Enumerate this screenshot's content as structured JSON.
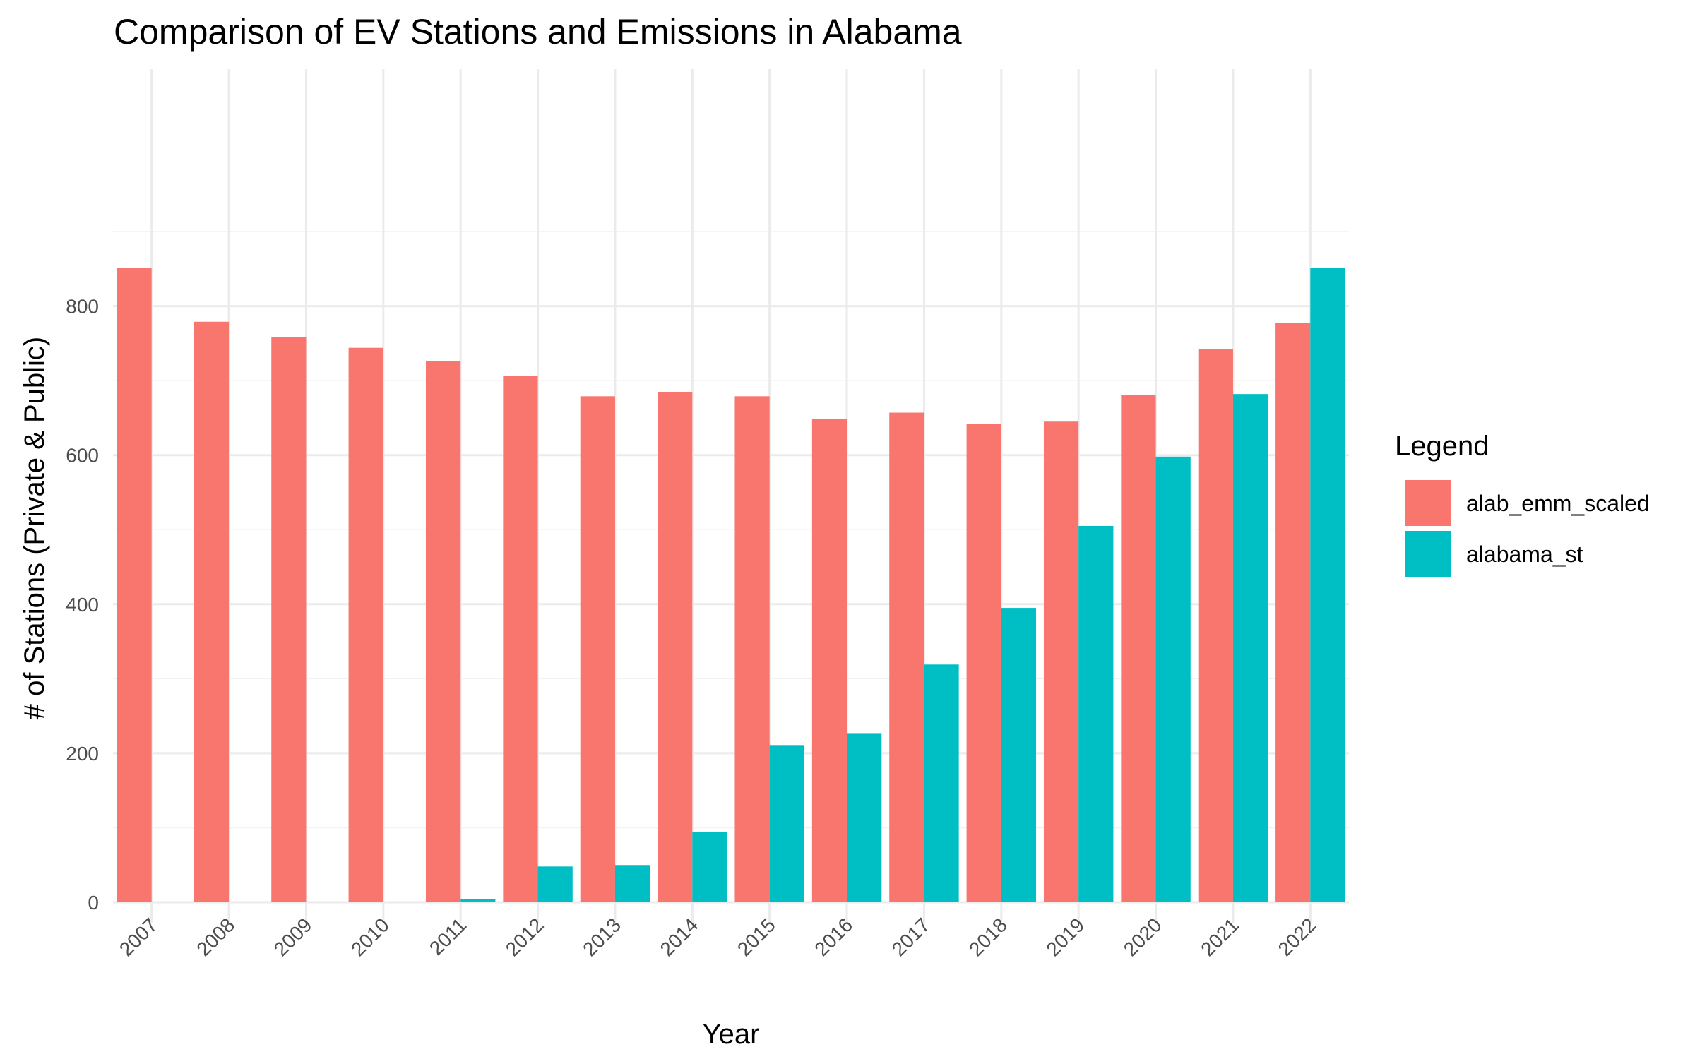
{
  "chart_data": {
    "type": "bar",
    "title": "Comparison of EV Stations and Emissions in Alabama",
    "xlabel": "Year",
    "ylabel": "# of Stations (Private & Public)",
    "categories": [
      "2007",
      "2008",
      "2009",
      "2010",
      "2011",
      "2012",
      "2013",
      "2014",
      "2015",
      "2016",
      "2017",
      "2018",
      "2019",
      "2020",
      "2021",
      "2022"
    ],
    "series": [
      {
        "name": "alab_emm_scaled",
        "color": "#F8766D",
        "values": [
          851,
          779,
          758,
          744,
          726,
          706,
          679,
          685,
          679,
          649,
          657,
          642,
          645,
          681,
          742,
          777
        ]
      },
      {
        "name": "alabama_st",
        "color": "#00BFC4",
        "values": [
          0,
          0,
          0,
          0,
          4,
          48,
          50,
          94,
          211,
          227,
          319,
          395,
          505,
          598,
          682,
          851
        ]
      }
    ],
    "ylim": [
      0,
      900
    ],
    "yticks": [
      0,
      200,
      400,
      600,
      800
    ],
    "grid": true,
    "legend_title": "Legend",
    "legend_position": "right"
  }
}
